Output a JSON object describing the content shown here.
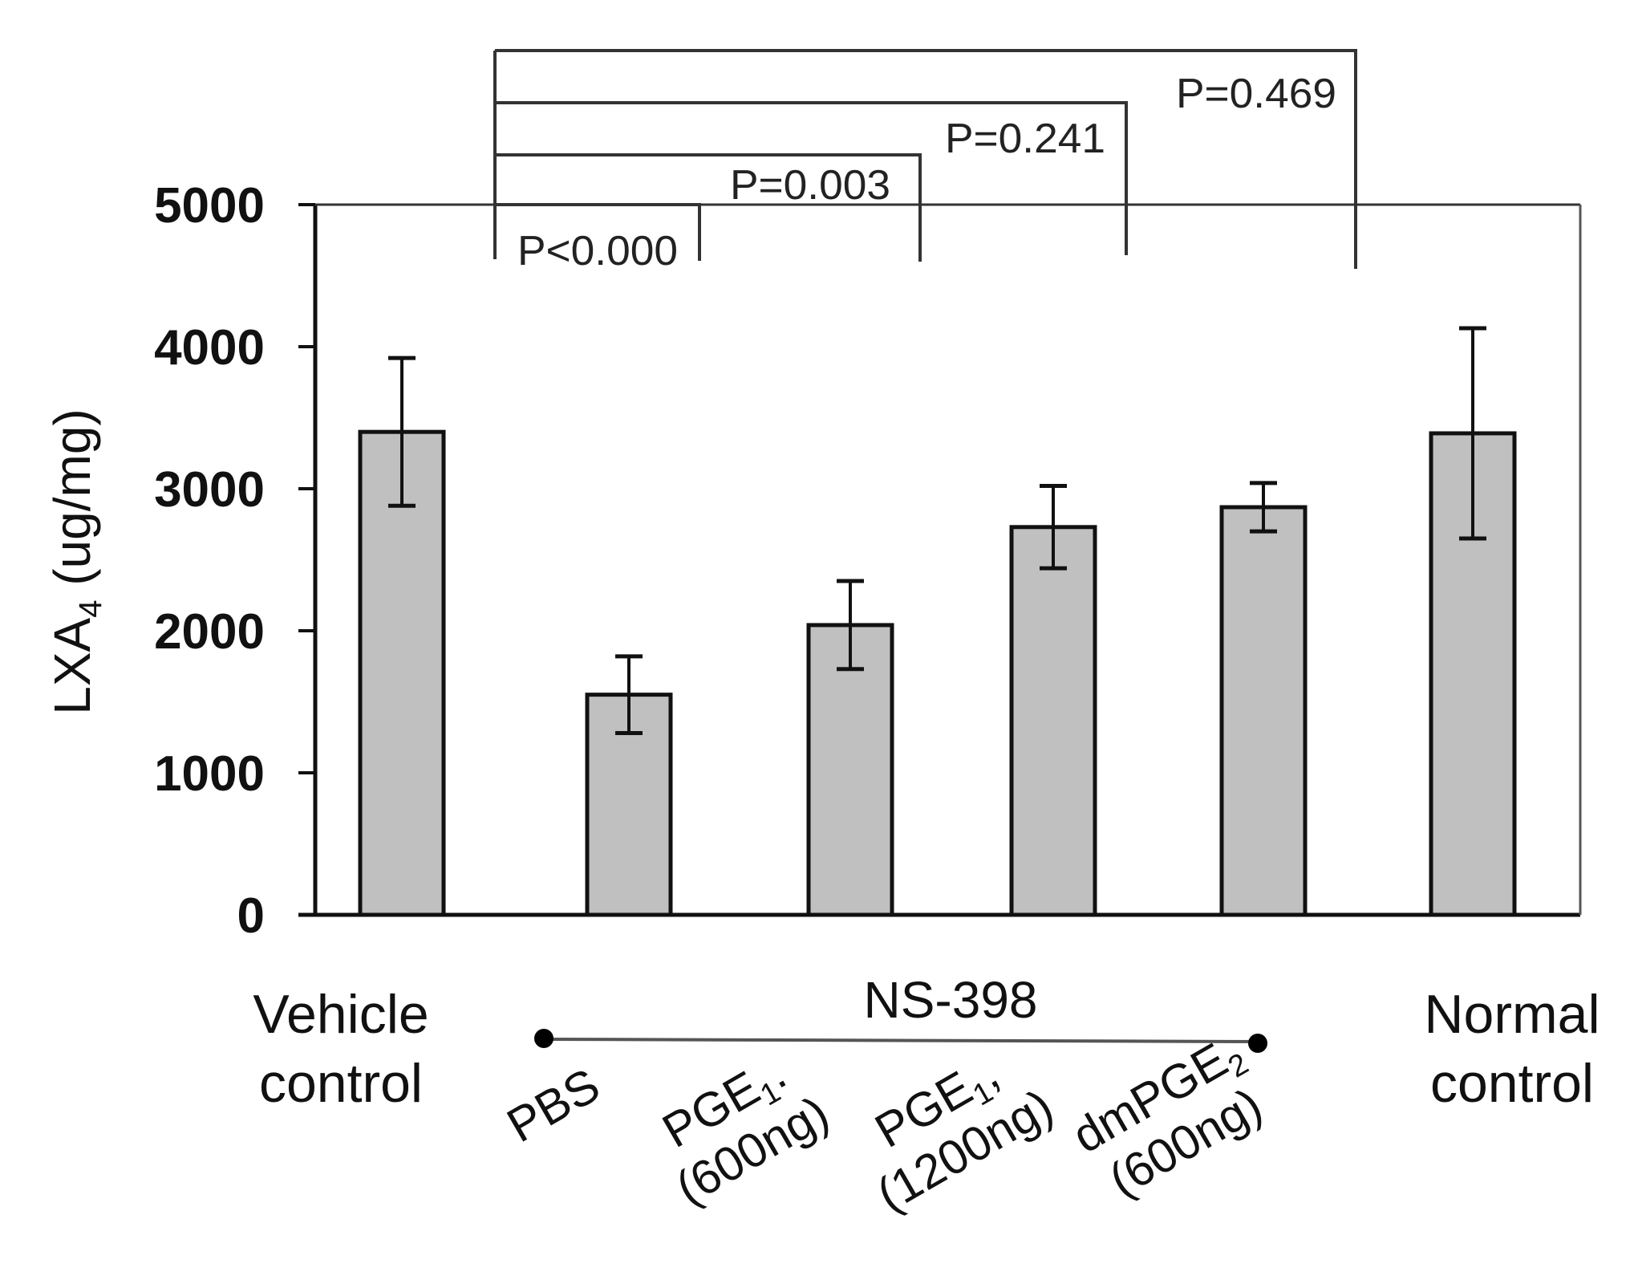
{
  "chart_data": {
    "type": "bar",
    "title": "",
    "xlabel": "",
    "ylabel": "LXA4 (ug/mg)",
    "ylabel_parts": {
      "main": "LXA",
      "sub": "4",
      "unit": " (ug/mg)"
    },
    "ylim": [
      0,
      5000
    ],
    "yticks": [
      0,
      1000,
      2000,
      3000,
      4000,
      5000
    ],
    "ytick_labels": [
      "0",
      "1000",
      "2000",
      "3000",
      "4000",
      "5000"
    ],
    "grid": false,
    "legend": null,
    "categories": [
      "Vehicle control",
      "PBS",
      "PGE1, (600ng)",
      "PGE1, (1200ng)",
      "dmPGE2 (600ng)",
      "Normal control"
    ],
    "category_labels": [
      {
        "lines": [
          "Vehicle",
          "control"
        ],
        "rotated": false
      },
      {
        "lines": [
          "PBS"
        ],
        "rotated": true
      },
      {
        "main": "PGE",
        "sub": "1",
        "suffix": ".",
        "line2": "(600ng)",
        "rotated": true
      },
      {
        "main": "PGE",
        "sub": "1",
        "suffix": ",",
        "line2": "(1200ng)",
        "rotated": true
      },
      {
        "main": "dmPGE",
        "sub": "2",
        "suffix": "",
        "line2": "(600ng)",
        "rotated": true
      },
      {
        "lines": [
          "Normal",
          "control"
        ],
        "rotated": false
      }
    ],
    "series": [
      {
        "name": "LXA4",
        "values": [
          3400,
          1550,
          2040,
          2730,
          2870,
          3390
        ],
        "errors": [
          520,
          270,
          310,
          290,
          170,
          740
        ]
      }
    ],
    "group_annotation": {
      "label": "NS-398",
      "spans": [
        "PBS",
        "dmPGE2 (600ng)"
      ]
    },
    "significance": [
      {
        "compare": [
          "Vehicle control",
          "PBS"
        ],
        "label": "P<0.000"
      },
      {
        "compare": [
          "Vehicle control",
          "PGE1, (600ng)"
        ],
        "label": "P=0.003"
      },
      {
        "compare": [
          "Vehicle control",
          "PGE1, (1200ng)"
        ],
        "label": "P=0.241"
      },
      {
        "compare": [
          "Vehicle control",
          "dmPGE2 (600ng)"
        ],
        "label": "P=0.469"
      }
    ],
    "colors": {
      "bar_fill": "#c0c0c0",
      "bar_stroke": "#111111",
      "axis": "#111111",
      "bracket": "#333333"
    }
  }
}
